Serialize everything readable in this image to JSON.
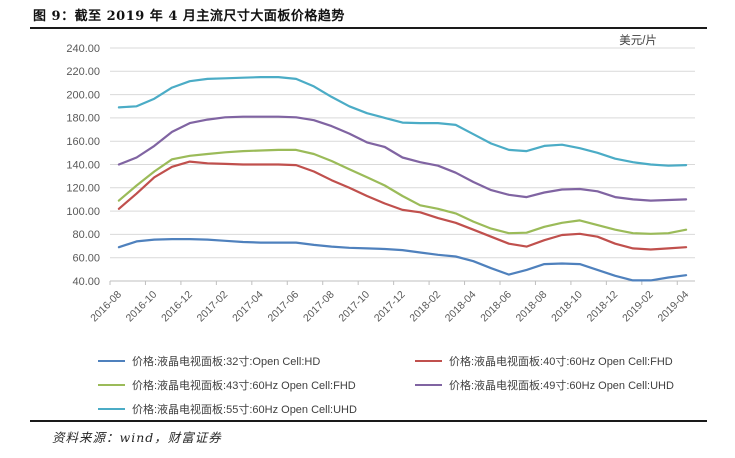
{
  "title": "图 9：截至 2019 年 4 月主流尺寸大面板价格趋势",
  "source": "资料来源：wind，财富证券",
  "chart_data": {
    "type": "line",
    "title": "截至2019年4月主流尺寸大面板价格趋势",
    "unit_label": "美元/片",
    "xlabel": "",
    "ylabel": "",
    "ylim": [
      40,
      240
    ],
    "ytick_step": 20,
    "grid": true,
    "legend_position": "bottom",
    "x_tick_interval": 2,
    "categories": [
      "2016-08",
      "2016-09",
      "2016-10",
      "2016-11",
      "2016-12",
      "2017-01",
      "2017-02",
      "2017-03",
      "2017-04",
      "2017-05",
      "2017-06",
      "2017-07",
      "2017-08",
      "2017-09",
      "2017-10",
      "2017-11",
      "2017-12",
      "2018-01",
      "2018-02",
      "2018-03",
      "2018-04",
      "2018-05",
      "2018-06",
      "2018-07",
      "2018-08",
      "2018-09",
      "2018-10",
      "2018-11",
      "2018-12",
      "2019-01",
      "2019-02",
      "2019-03",
      "2019-04"
    ],
    "series": [
      {
        "name": "价格:液晶电视面板:32寸:Open Cell:HD",
        "color": "#4F81BD",
        "values": [
          69,
          74,
          75.5,
          76,
          76,
          75.5,
          74.5,
          73.5,
          73,
          73,
          73,
          71,
          69.5,
          68.5,
          68,
          67.5,
          66.5,
          64.5,
          62.5,
          61,
          57,
          51,
          45.5,
          49.5,
          54.5,
          55,
          54.5,
          49.5,
          44.5,
          40.5,
          40.5,
          43,
          45
        ]
      },
      {
        "name": "价格:液晶电视面板:40寸:60Hz Open Cell:FHD",
        "color": "#C0504D",
        "values": [
          102,
          115,
          129,
          138,
          142.5,
          141,
          140.5,
          140,
          140,
          140,
          139.5,
          134,
          126.5,
          120,
          113,
          106.5,
          101,
          99,
          94,
          90,
          84,
          78,
          72,
          69.5,
          75,
          79.5,
          80.5,
          78,
          72,
          68,
          67,
          68,
          69
        ]
      },
      {
        "name": "价格:液晶电视面板:43寸:60Hz Open Cell:FHD",
        "color": "#9BBB59",
        "values": [
          109,
          122,
          134,
          144.5,
          147.5,
          149,
          150.5,
          151.5,
          152,
          152.5,
          152.5,
          149,
          143,
          136,
          129,
          122,
          113,
          105,
          102,
          98,
          91,
          85,
          81,
          81.5,
          86.5,
          90,
          92,
          88,
          84,
          81,
          80.5,
          81,
          84
        ]
      },
      {
        "name": "价格:液晶电视面板:49寸:60Hz Open Cell:UHD",
        "color": "#8064A2",
        "values": [
          140,
          146,
          156,
          168,
          175.5,
          178.5,
          180.5,
          181,
          181,
          181,
          180.5,
          178,
          173,
          166.5,
          159,
          155,
          146,
          142,
          139,
          133,
          125,
          118,
          114,
          112,
          116,
          118.5,
          119,
          117,
          112,
          110,
          109,
          109.5,
          110
        ]
      },
      {
        "name": "价格:液晶电视面板:55寸:60Hz Open Cell:UHD",
        "color": "#4BACC6",
        "values": [
          189,
          190,
          196.5,
          206,
          211.5,
          213.5,
          214,
          214.5,
          215,
          215,
          213.5,
          207,
          198,
          190,
          184,
          180,
          176,
          175.5,
          175.5,
          174,
          166,
          158,
          152.5,
          151.5,
          156,
          157,
          154,
          150,
          145,
          142,
          140,
          139,
          139.5
        ]
      }
    ],
    "axis_colors": {
      "grid": "#D9D9D9",
      "axis": "#BFBFBF",
      "tick_label": "#595959",
      "unit_label": "#404040"
    }
  }
}
